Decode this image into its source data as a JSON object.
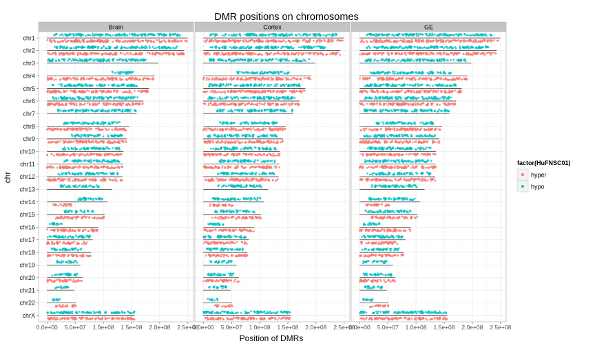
{
  "chart_data": {
    "type": "scatter",
    "title": "DMR positions on chromosomes",
    "xlabel": "Position of DMRs",
    "ylabel": "chr",
    "xlim": [
      -15000000.0,
      260000000.0
    ],
    "x_ticks": [
      0,
      50000000,
      100000000,
      150000000,
      200000000,
      250000000
    ],
    "x_tick_labels": [
      "0.0e+00",
      "5.0e+07",
      "1.0e+08",
      "1.5e+08",
      "2.0e+08",
      "2.5e+08"
    ],
    "categories": [
      "chr1",
      "chr2",
      "chr3",
      "chr4",
      "chr5",
      "chr6",
      "chr7",
      "chr8",
      "chr9",
      "chr10",
      "chr11",
      "chr12",
      "chr13",
      "chr14",
      "chr15",
      "chr16",
      "chr17",
      "chr18",
      "chr19",
      "chr20",
      "chr21",
      "chr22",
      "chrX"
    ],
    "chromosome_lengths": [
      249250621,
      243199373,
      198022430,
      191154276,
      180915260,
      171115067,
      159138663,
      146364022,
      141213431,
      135534747,
      135006516,
      133851895,
      115169878,
      107349540,
      102531392,
      90354753,
      81195210,
      78077248,
      59128983,
      63025520,
      48129895,
      51304566,
      155270560
    ],
    "facets": [
      "Brain",
      "Cortex",
      "GE"
    ],
    "legend": {
      "title": "factor(HuFNSC01)",
      "position": "right",
      "entries": [
        {
          "name": "hyper",
          "color": "#F8766D"
        },
        {
          "name": "hypo",
          "color": "#00BFC4"
        }
      ]
    },
    "series": [
      {
        "name": "hyper",
        "color": "#F8766D"
      },
      {
        "name": "hypo",
        "color": "#00BFC4"
      }
    ],
    "dmr_segments": {
      "Brain": [
        {
          "hypo": [
            [
              0.05,
              0.95
            ]
          ],
          "hyper": [
            [
              0.0,
              1.0
            ]
          ]
        },
        {
          "hypo": [
            [
              0.05,
              0.95
            ]
          ],
          "hyper": [
            [
              0.0,
              1.0
            ]
          ]
        },
        {
          "hypo": [
            [
              0.0,
              0.9
            ]
          ],
          "hyper": []
        },
        {
          "hypo": [
            [
              0.6,
              0.8
            ]
          ],
          "hyper": [
            [
              0.0,
              1.0
            ]
          ]
        },
        {
          "hypo": [
            [
              0.05,
              0.9
            ]
          ],
          "hyper": [
            [
              0.0,
              1.0
            ]
          ]
        },
        {
          "hypo": [
            [
              0.05,
              0.95
            ]
          ],
          "hyper": [
            [
              0.0,
              1.0
            ]
          ]
        },
        {
          "hypo": [
            [
              0.1,
              1.0
            ]
          ],
          "hyper": []
        },
        {
          "hypo": [
            [
              0.2,
              0.9
            ]
          ],
          "hyper": [
            [
              0.0,
              1.0
            ]
          ]
        },
        {
          "hypo": [
            [
              0.3,
              0.95
            ]
          ],
          "hyper": [
            [
              0.0,
              1.0
            ]
          ]
        },
        {
          "hypo": [
            [
              0.2,
              0.95
            ]
          ],
          "hyper": [
            [
              0.0,
              1.0
            ]
          ]
        },
        {
          "hypo": [
            [
              0.2,
              0.95
            ]
          ],
          "hyper": [
            [
              0.0,
              1.0
            ]
          ]
        },
        {
          "hypo": [
            [
              0.15,
              0.95
            ]
          ],
          "hyper": [
            [
              0.0,
              1.0
            ]
          ]
        },
        {
          "hypo": [
            [
              0.2,
              0.8
            ]
          ],
          "hyper": []
        },
        {
          "hypo": [
            [
              0.5,
              0.95
            ]
          ],
          "hyper": [
            [
              0.1,
              0.4
            ]
          ]
        },
        {
          "hypo": [
            [
              0.3,
              0.8
            ]
          ],
          "hyper": [
            [
              0.15,
              1.0
            ]
          ]
        },
        {
          "hypo": [
            [
              0.0,
              0.3
            ]
          ],
          "hyper": [
            [
              0.0,
              1.0
            ]
          ]
        },
        {
          "hypo": [
            [
              0.0,
              0.95
            ]
          ],
          "hyper": [
            [
              0.0,
              0.9
            ]
          ]
        },
        {
          "hypo": [
            [
              0.1,
              0.8
            ]
          ],
          "hyper": [
            [
              0.0,
              1.0
            ]
          ]
        },
        {
          "hypo": [
            [
              0.3,
              0.9
            ]
          ],
          "hyper": []
        },
        {
          "hypo": [
            [
              0.1,
              0.9
            ]
          ],
          "hyper": [
            [
              0.0,
              1.0
            ]
          ]
        },
        {
          "hypo": [
            [
              0.3,
              0.8
            ]
          ],
          "hyper": []
        },
        {
          "hypo": [
            [
              0.2,
              0.5
            ]
          ],
          "hyper": [
            [
              0.3,
              1.0
            ]
          ]
        },
        {
          "hypo": [
            [
              0.0,
              1.0
            ]
          ],
          "hyper": [
            [
              0.0,
              1.0
            ]
          ]
        }
      ],
      "Cortex": [
        {
          "hypo": [
            [
              0.05,
              0.95
            ]
          ],
          "hyper": [
            [
              0.0,
              1.0
            ]
          ]
        },
        {
          "hypo": [
            [
              0.05,
              0.9
            ]
          ],
          "hyper": [
            [
              0.0,
              1.0
            ]
          ]
        },
        {
          "hypo": [
            [
              0.05,
              0.95
            ]
          ],
          "hyper": []
        },
        {
          "hypo": [
            [
              0.3,
              0.8
            ]
          ],
          "hyper": [
            [
              0.0,
              1.0
            ]
          ]
        },
        {
          "hypo": [
            [
              0.05,
              0.95
            ]
          ],
          "hyper": [
            [
              0.0,
              1.0
            ]
          ]
        },
        {
          "hypo": [
            [
              0.05,
              0.95
            ]
          ],
          "hyper": [
            [
              0.0,
              1.0
            ]
          ]
        },
        {
          "hypo": [
            [
              0.15,
              1.0
            ]
          ],
          "hyper": []
        },
        {
          "hypo": [
            [
              0.2,
              0.9
            ]
          ],
          "hyper": [
            [
              0.0,
              1.0
            ]
          ]
        },
        {
          "hypo": [
            [
              0.05,
              0.95
            ]
          ],
          "hyper": [
            [
              0.0,
              1.0
            ]
          ]
        },
        {
          "hypo": [
            [
              0.1,
              0.95
            ]
          ],
          "hyper": [
            [
              0.0,
              1.0
            ]
          ]
        },
        {
          "hypo": [
            [
              0.2,
              0.95
            ]
          ],
          "hyper": [
            [
              0.0,
              1.0
            ]
          ]
        },
        {
          "hypo": [
            [
              0.15,
              0.95
            ]
          ],
          "hyper": [
            [
              0.0,
              1.0
            ]
          ]
        },
        {
          "hypo": [
            [
              0.2,
              0.9
            ]
          ],
          "hyper": []
        },
        {
          "hypo": [
            [
              0.15,
              0.95
            ]
          ],
          "hyper": [
            [
              0.1,
              0.5
            ]
          ]
        },
        {
          "hypo": [
            [
              0.2,
              0.9
            ]
          ],
          "hyper": [
            [
              0.15,
              1.0
            ]
          ]
        },
        {
          "hypo": [
            [
              0.05,
              0.4
            ]
          ],
          "hyper": [
            [
              0.0,
              1.0
            ]
          ]
        },
        {
          "hypo": [
            [
              0.0,
              0.95
            ]
          ],
          "hyper": [
            [
              0.0,
              0.95
            ]
          ]
        },
        {
          "hypo": [
            [
              0.05,
              0.9
            ]
          ],
          "hyper": [
            [
              0.0,
              1.0
            ]
          ]
        },
        {
          "hypo": [
            [
              0.2,
              0.85
            ]
          ],
          "hyper": []
        },
        {
          "hypo": [
            [
              0.1,
              0.9
            ]
          ],
          "hyper": [
            [
              0.0,
              1.0
            ]
          ]
        },
        {
          "hypo": [
            [
              0.2,
              0.85
            ]
          ],
          "hyper": []
        },
        {
          "hypo": [
            [
              0.15,
              0.5
            ]
          ],
          "hyper": [
            [
              0.4,
              1.0
            ]
          ]
        },
        {
          "hypo": [
            [
              0.0,
              1.0
            ]
          ],
          "hyper": [
            [
              0.0,
              1.0
            ]
          ]
        }
      ],
      "GE": [
        {
          "hypo": [
            [
              0.05,
              0.95
            ]
          ],
          "hyper": [
            [
              0.0,
              1.0
            ]
          ]
        },
        {
          "hypo": [
            [
              0.05,
              0.95
            ]
          ],
          "hyper": [
            [
              0.0,
              1.0
            ]
          ]
        },
        {
          "hypo": [
            [
              0.05,
              0.95
            ]
          ],
          "hyper": []
        },
        {
          "hypo": [
            [
              0.1,
              0.85
            ]
          ],
          "hyper": [
            [
              0.0,
              1.0
            ]
          ]
        },
        {
          "hypo": [
            [
              0.05,
              0.95
            ]
          ],
          "hyper": [
            [
              0.0,
              1.0
            ]
          ]
        },
        {
          "hypo": [
            [
              0.05,
              0.95
            ]
          ],
          "hyper": [
            [
              0.0,
              1.0
            ]
          ]
        },
        {
          "hypo": [
            [
              0.05,
              1.0
            ]
          ],
          "hyper": []
        },
        {
          "hypo": [
            [
              0.2,
              0.9
            ]
          ],
          "hyper": [
            [
              0.0,
              1.0
            ]
          ]
        },
        {
          "hypo": [
            [
              0.05,
              0.95
            ]
          ],
          "hyper": [
            [
              0.0,
              1.0
            ]
          ]
        },
        {
          "hypo": [
            [
              0.1,
              0.95
            ]
          ],
          "hyper": [
            [
              0.0,
              1.0
            ]
          ]
        },
        {
          "hypo": [
            [
              0.05,
              0.95
            ]
          ],
          "hyper": [
            [
              0.0,
              1.0
            ]
          ]
        },
        {
          "hypo": [
            [
              0.1,
              0.95
            ]
          ],
          "hyper": [
            [
              0.0,
              1.0
            ]
          ]
        },
        {
          "hypo": [
            [
              0.15,
              0.9
            ]
          ],
          "hyper": []
        },
        {
          "hypo": [
            [
              0.15,
              0.95
            ]
          ],
          "hyper": [
            [
              0.1,
              0.5
            ]
          ]
        },
        {
          "hypo": [
            [
              0.1,
              0.9
            ]
          ],
          "hyper": [
            [
              0.2,
              1.0
            ]
          ]
        },
        {
          "hypo": [
            [
              0.05,
              0.4
            ]
          ],
          "hyper": [
            [
              0.0,
              1.0
            ]
          ]
        },
        {
          "hypo": [
            [
              0.0,
              0.95
            ]
          ],
          "hyper": [
            [
              0.0,
              0.9
            ]
          ]
        },
        {
          "hypo": [
            [
              0.05,
              0.9
            ]
          ],
          "hyper": [
            [
              0.0,
              1.0
            ]
          ]
        },
        {
          "hypo": [
            [
              0.1,
              0.85
            ]
          ],
          "hyper": []
        },
        {
          "hypo": [
            [
              0.1,
              0.9
            ]
          ],
          "hyper": [
            [
              0.0,
              1.0
            ]
          ]
        },
        {
          "hypo": [
            [
              0.2,
              0.85
            ]
          ],
          "hyper": []
        },
        {
          "hypo": [
            [
              0.1,
              0.5
            ]
          ],
          "hyper": [
            [
              0.3,
              1.0
            ]
          ]
        },
        {
          "hypo": [
            [
              0.0,
              1.0
            ]
          ],
          "hyper": [
            [
              0.0,
              1.0
            ]
          ]
        }
      ]
    },
    "grid": true
  }
}
